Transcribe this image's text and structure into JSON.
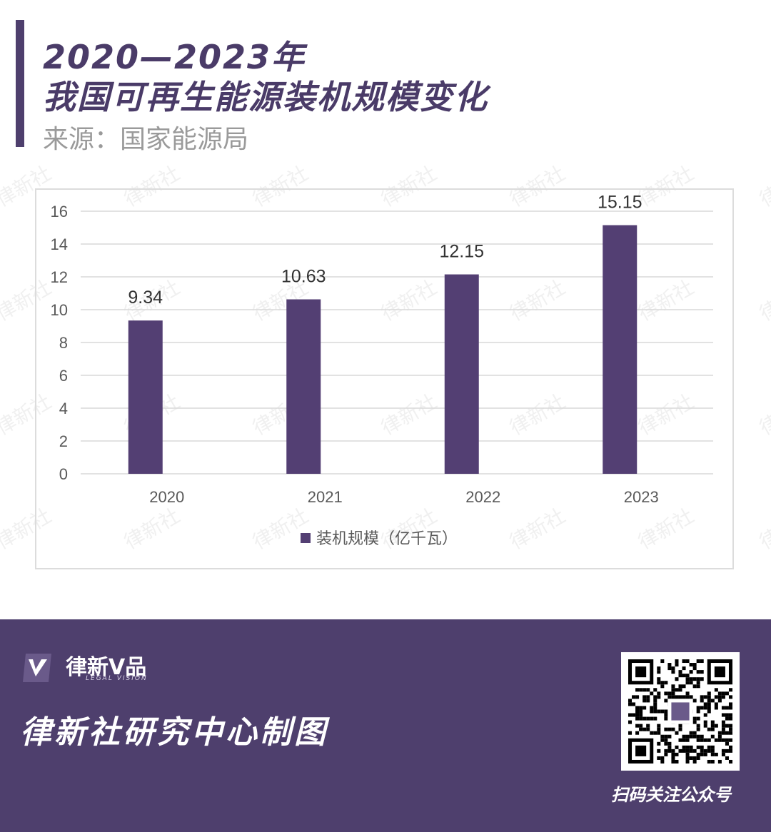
{
  "header": {
    "title_line1": "2020—2023年",
    "title_line2": "我国可再生能源装机规模变化",
    "source": "来源：国家能源局"
  },
  "watermark_text": "律新社",
  "chart_data": {
    "type": "bar",
    "categories": [
      "2020",
      "2021",
      "2022",
      "2023"
    ],
    "series": [
      {
        "name": "装机规模（亿千瓦）",
        "values": [
          9.34,
          10.63,
          12.15,
          15.15
        ]
      }
    ],
    "data_labels": [
      "9.34",
      "10.63",
      "12.15",
      "15.15"
    ],
    "yticks": [
      0,
      2,
      4,
      6,
      8,
      10,
      12,
      14,
      16
    ],
    "ylim": [
      0,
      16
    ],
    "grid": true,
    "legend": "bottom",
    "colors": {
      "bar": "#533f73",
      "grid": "#d9d9d9",
      "text": "#595959"
    }
  },
  "footer": {
    "brand": "律新V品",
    "brand_sub": "LEGAL VISION",
    "title": "律新社研究中心制图",
    "qr_caption": "扫码关注公众号",
    "bg_color": "#4e3f6d"
  }
}
